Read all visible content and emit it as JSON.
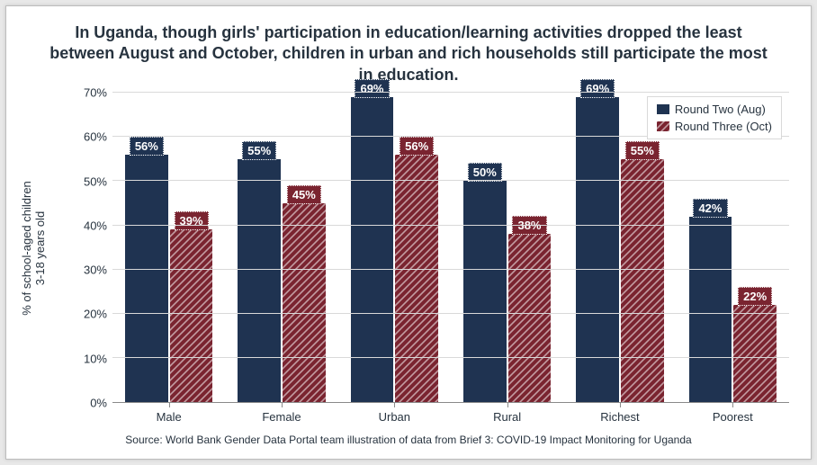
{
  "title": "In Uganda, though girls' participation in education/learning activities dropped the least between August and October, children in urban and rich households still participate the most in education.",
  "title_fontsize": 18,
  "yaxis_title": "% of school-aged children\n3-18 years old",
  "yaxis_title_fontsize": 13,
  "source": "Source: World Bank Gender Data Portal team illustration of data from Brief 3: COVID-19 Impact Monitoring for Uganda",
  "source_fontsize": 12,
  "chart": {
    "type": "bar",
    "categories": [
      "Male",
      "Female",
      "Urban",
      "Rural",
      "Richest",
      "Poorest"
    ],
    "series": [
      {
        "name": "Round Two (Aug)",
        "values": [
          56,
          55,
          69,
          50,
          69,
          42
        ],
        "color": "#1f3351",
        "pattern": "solid"
      },
      {
        "name": "Round Three (Oct)",
        "values": [
          39,
          45,
          56,
          38,
          55,
          22
        ],
        "color": "#7a2430",
        "pattern": "diagonal-hatch"
      }
    ],
    "ylim": [
      0,
      70
    ],
    "ytick_step": 10,
    "ytick_suffix": "%",
    "bar_label_suffix": "%",
    "bar_label_fontsize": 13,
    "axis_label_fontsize": 13,
    "legend_fontsize": 13,
    "grid_color": "#d9d9d9",
    "background": "#ffffff",
    "textcolor": "#27333f",
    "bar_label_bg_series0": "#1f3351",
    "bar_label_bg_series1": "#7a2430"
  }
}
